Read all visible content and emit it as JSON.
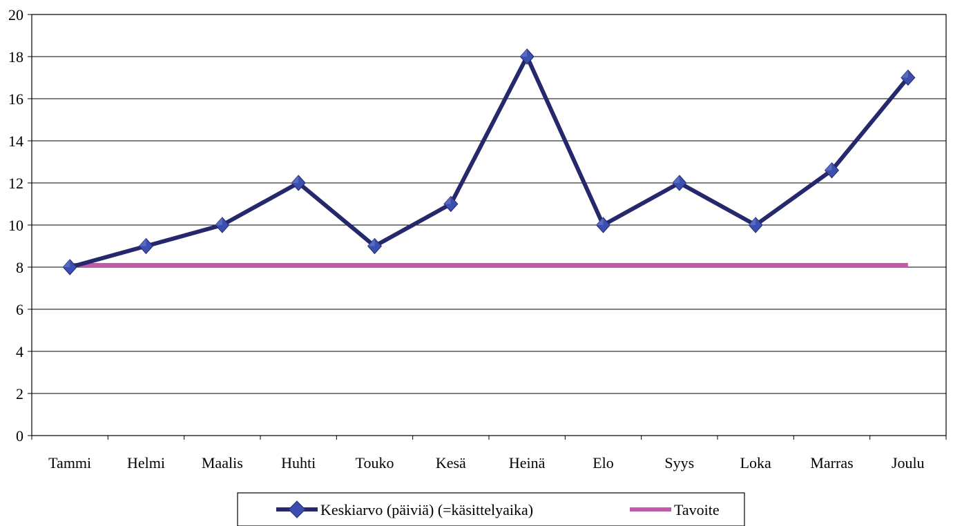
{
  "chart_data": {
    "type": "line",
    "categories": [
      "Tammi",
      "Helmi",
      "Maalis",
      "Huhti",
      "Touko",
      "Kesä",
      "Heinä",
      "Elo",
      "Syys",
      "Loka",
      "Marras",
      "Joulu"
    ],
    "series": [
      {
        "name": "Keskiarvo (päiviä) (=käsittelyaika)",
        "values": [
          8,
          9,
          10,
          12,
          9,
          11,
          18,
          10,
          12,
          10,
          12.6,
          17
        ],
        "color": "#25286b",
        "marker": "diamond",
        "marker_color": "#3b4fb0"
      },
      {
        "name": "Tavoite",
        "values": [
          8.1,
          8.1,
          8.1,
          8.1,
          8.1,
          8.1,
          8.1,
          8.1,
          8.1,
          8.1,
          8.1,
          8.1
        ],
        "color": "#c25aab",
        "marker": "none"
      }
    ],
    "ylim": [
      0,
      20
    ],
    "yticks": [
      "0",
      "2",
      "4",
      "6",
      "8",
      "10",
      "12",
      "14",
      "16",
      "18",
      "20"
    ],
    "grid": true,
    "legend_position": "bottom"
  }
}
